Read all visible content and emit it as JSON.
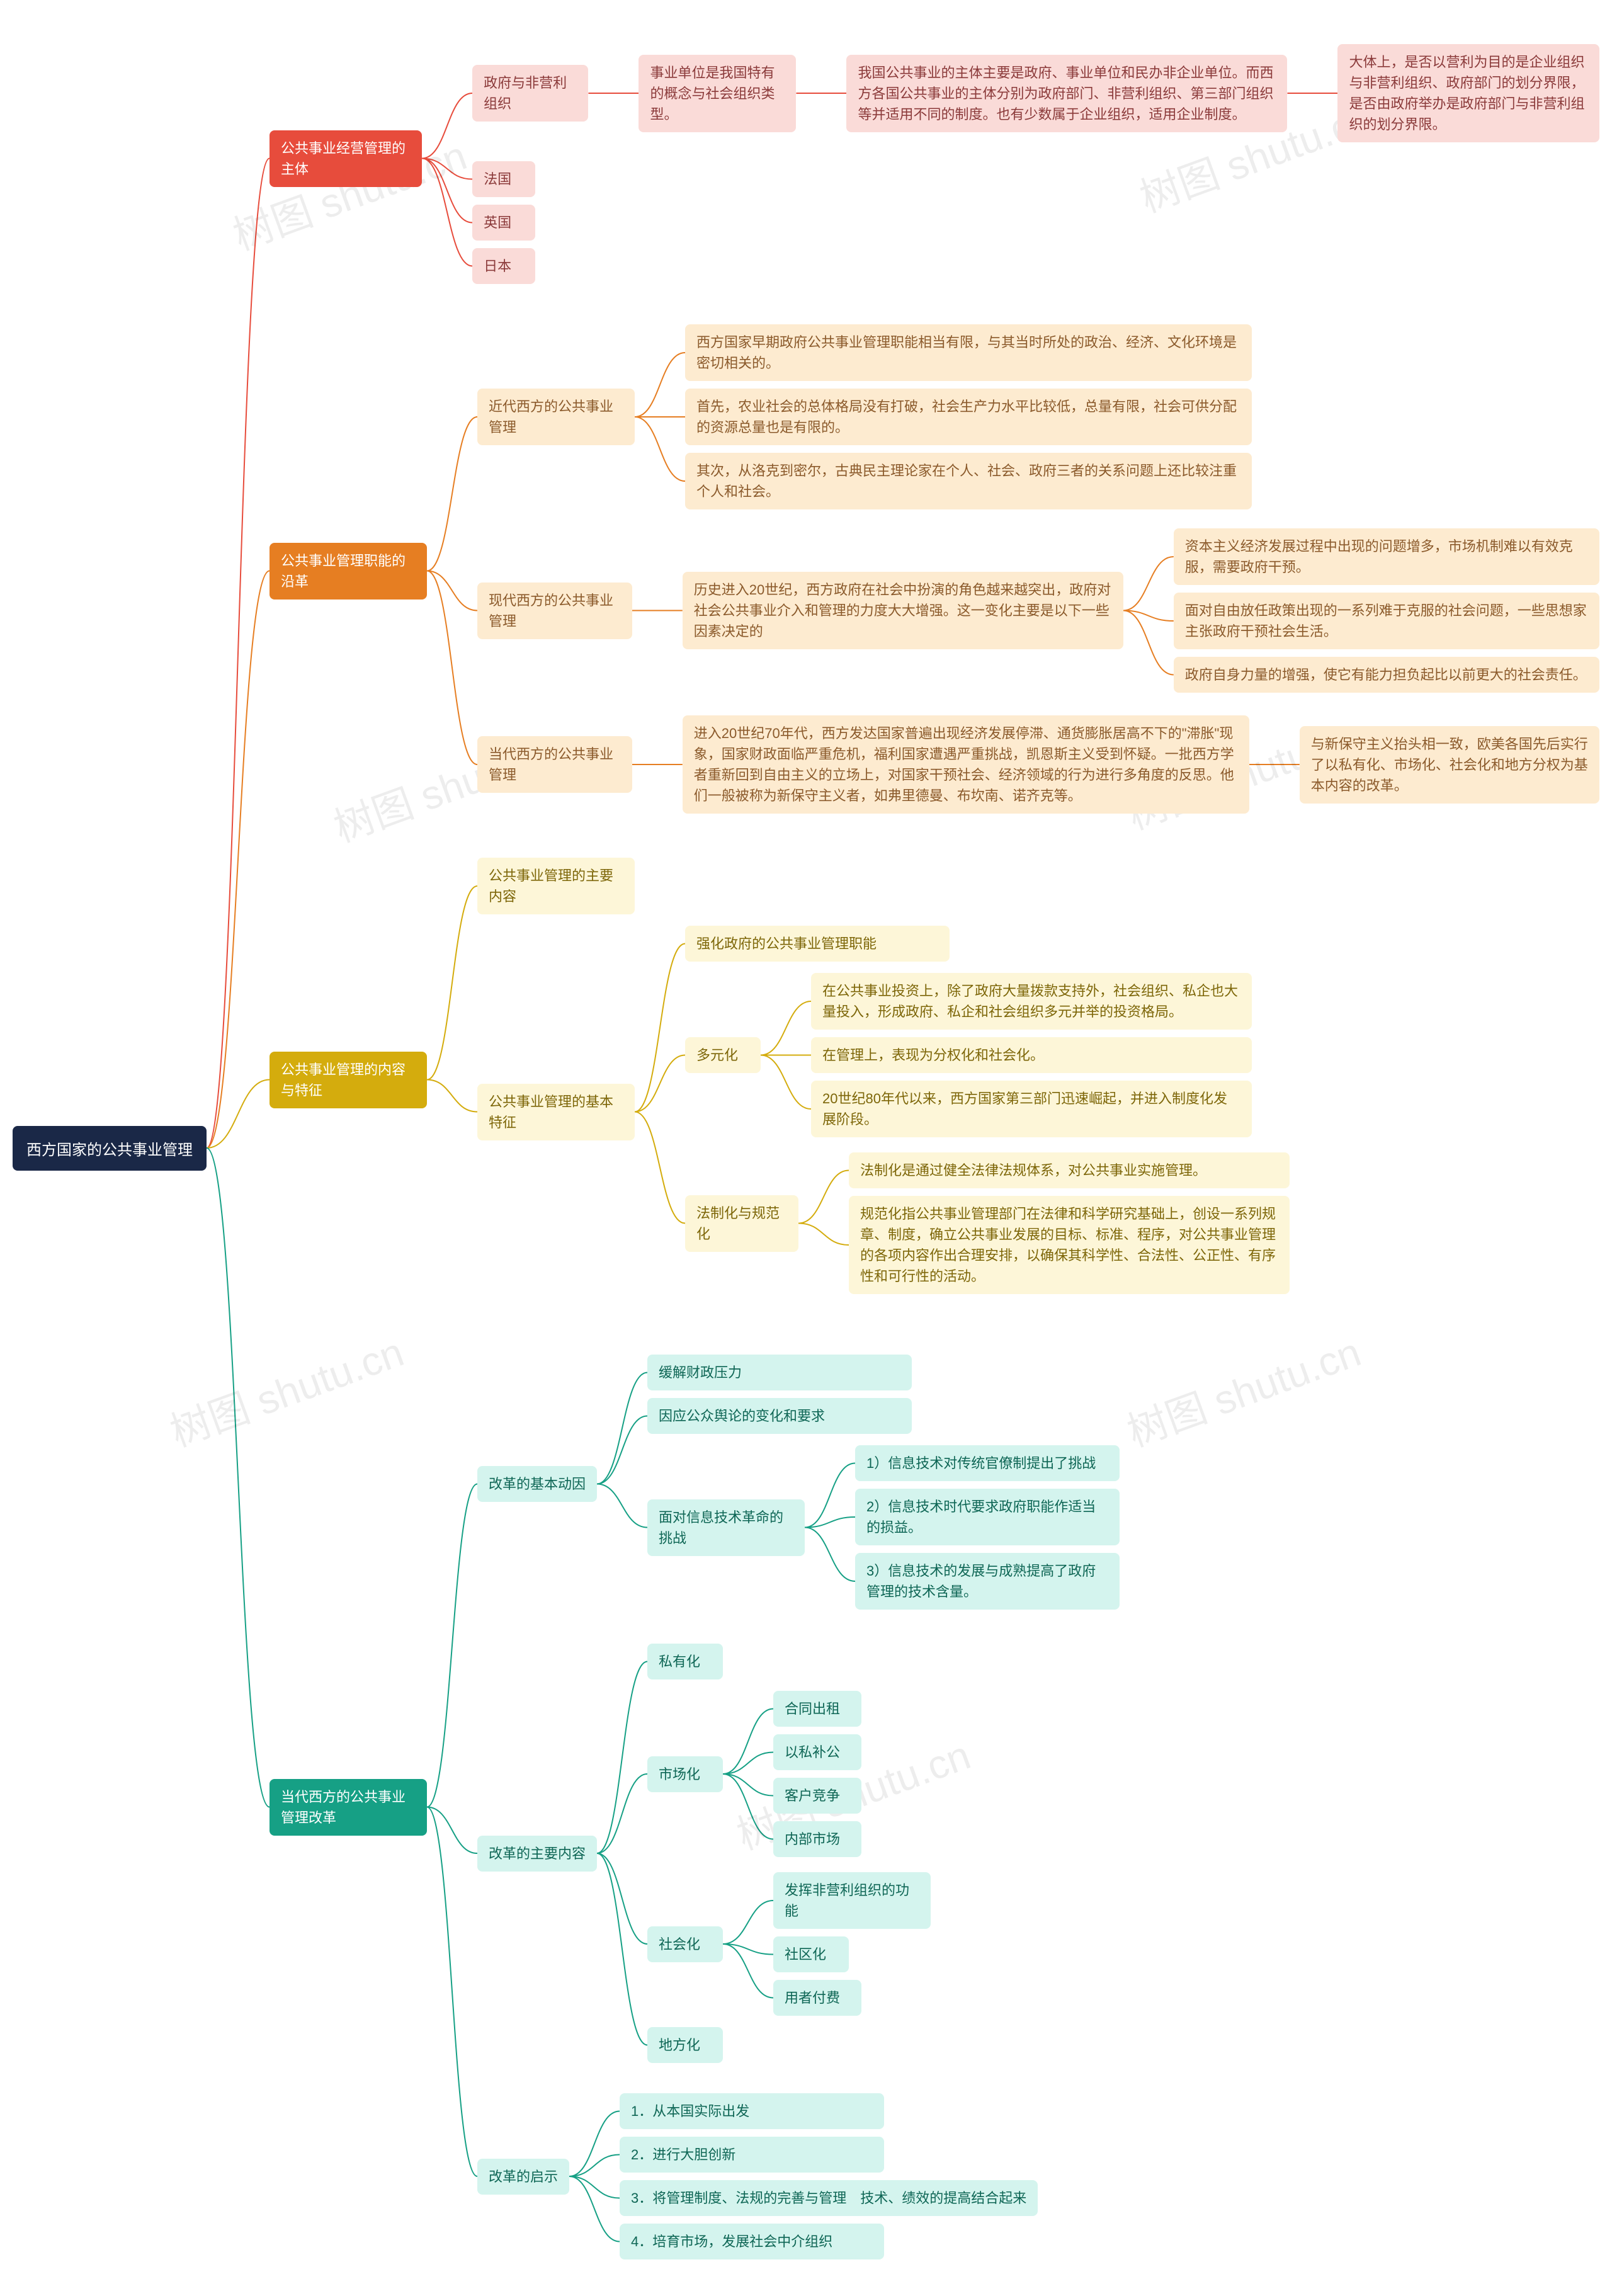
{
  "watermark_text": "树图 shutu.cn",
  "colors": {
    "root_bg": "#1a2847",
    "root_fg": "#ffffff",
    "red_bg": "#e74c3c",
    "red_fg": "#ffffff",
    "red_light": "#fadbd8",
    "red_dark_text": "#8b3a3a",
    "orange_bg": "#e67e22",
    "orange_fg": "#ffffff",
    "orange_light": "#fdebd0",
    "orange_dark_text": "#8b5a2b",
    "yellow_bg": "#d4ac0d",
    "yellow_fg": "#ffffff",
    "yellow_light": "#fdf6d8",
    "yellow_dark_text": "#7d6608",
    "teal_bg": "#16a085",
    "teal_fg": "#ffffff",
    "teal_light": "#d4f4ee",
    "teal_dark_text": "#0e6655"
  },
  "root": "西方国家的公共事业管理",
  "b1": {
    "title": "公共事业经营管理的主体",
    "n1": "政府与非营利组织",
    "n1a": "事业单位是我国特有的概念与社会组织类型。",
    "n1b": "我国公共事业的主体主要是政府、事业单位和民办非企业单位。而西方各国公共事业的主体分别为政府部门、非营利组织、第三部门组织等并适用不同的制度。也有少数属于企业组织，适用企业制度。",
    "n1c": "大体上，是否以营利为目的是企业组织与非营利组织、政府部门的划分界限，是否由政府举办是政府部门与非营利组织的划分界限。",
    "n2": "法国",
    "n3": "英国",
    "n4": "日本"
  },
  "b2": {
    "title": "公共事业管理职能的沿革",
    "s1": {
      "title": "近代西方的公共事业管理",
      "a": "西方国家早期政府公共事业管理职能相当有限，与其当时所处的政治、经济、文化环境是密切相关的。",
      "b": "首先，农业社会的总体格局没有打破，社会生产力水平比较低，总量有限，社会可供分配的资源总量也是有限的。",
      "c": "其次，从洛克到密尔，古典民主理论家在个人、社会、政府三者的关系问题上还比较注重个人和社会。"
    },
    "s2": {
      "title": "现代西方的公共事业管理",
      "a": "历史进入20世纪，西方政府在社会中扮演的角色越来越突出，政府对社会公共事业介入和管理的力度大大增强。这一变化主要是以下一些因素决定的",
      "b": "资本主义经济发展过程中出现的问题增多，市场机制难以有效克服，需要政府干预。",
      "c": "面对自由放任政策出现的一系列难于克服的社会问题，一些思想家主张政府干预社会生活。",
      "d": "政府自身力量的增强，使它有能力担负起比以前更大的社会责任。"
    },
    "s3": {
      "title": "当代西方的公共事业管理",
      "a": "进入20世纪70年代，西方发达国家普遍出现经济发展停滞、通货膨胀居高不下的\"滞胀\"现象，国家财政面临严重危机，福利国家遭遇严重挑战，凯恩斯主义受到怀疑。一批西方学者重新回到自由主义的立场上，对国家干预社会、经济领域的行为进行多角度的反思。他们一般被称为新保守主义者，如弗里德曼、布坎南、诺齐克等。",
      "b": "与新保守主义抬头相一致，欧美各国先后实行了以私有化、市场化、社会化和地方分权为基本内容的改革。"
    }
  },
  "b3": {
    "title": "公共事业管理的内容与特征",
    "n1": "公共事业管理的主要内容",
    "n2": "公共事业管理的基本特征",
    "f1": "强化政府的公共事业管理职能",
    "f2": {
      "title": "多元化",
      "a": "在公共事业投资上，除了政府大量拨款支持外，社会组织、私企也大量投入，形成政府、私企和社会组织多元并举的投资格局。",
      "b": "在管理上，表现为分权化和社会化。",
      "c": "20世纪80年代以来，西方国家第三部门迅速崛起，并进入制度化发展阶段。"
    },
    "f3": {
      "title": "法制化与规范化",
      "a": "法制化是通过健全法律法规体系，对公共事业实施管理。",
      "b": "规范化指公共事业管理部门在法律和科学研究基础上，创设一系列规章、制度，确立公共事业发展的目标、标准、程序，对公共事业管理的各项内容作出合理安排，以确保其科学性、合法性、公正性、有序性和可行性的活动。"
    }
  },
  "b4": {
    "title": "当代西方的公共事业管理改革",
    "s1": {
      "title": "改革的基本动因",
      "a": "缓解财政压力",
      "b": "因应公众舆论的变化和要求",
      "c": "面对信息技术革命的挑战",
      "c1": "1）信息技术对传统官僚制提出了挑战",
      "c2": "2）信息技术时代要求政府职能作适当的损益。",
      "c3": "3）信息技术的发展与成熟提高了政府管理的技术含量。"
    },
    "s2": {
      "title": "改革的主要内容",
      "a": "私有化",
      "b": "市场化",
      "b1": "合同出租",
      "b2": "以私补公",
      "b3": "客户竞争",
      "b4": "内部市场",
      "c": "社会化",
      "c1": "发挥非营利组织的功能",
      "c2": "社区化",
      "c3": "用者付费",
      "d": "地方化"
    },
    "s3": {
      "title": "改革的启示",
      "a": "1．从本国实际出发",
      "b": "2．进行大胆创新",
      "c": "3．将管理制度、法规的完善与管理　技术、绩效的提高结合起来",
      "d": "4．培育市场，发展社会中介组织"
    }
  }
}
